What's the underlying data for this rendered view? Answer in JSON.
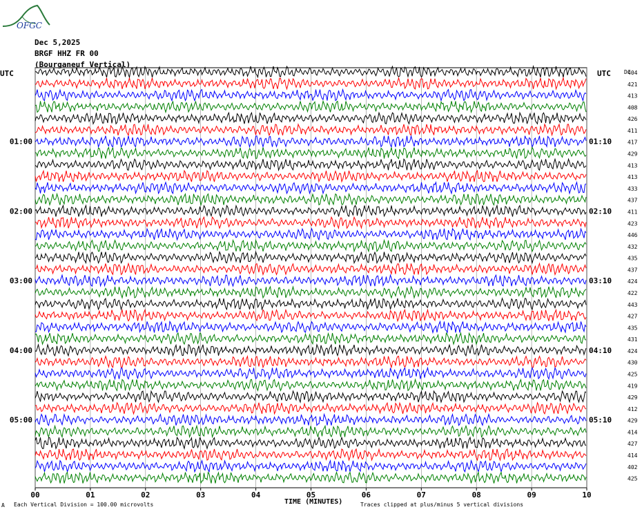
{
  "header": {
    "logo_text": "OFGC",
    "date": "Dec 5,2025",
    "station": "BRGF HHZ FR 00",
    "location": "(Bourganeuf Vertical)"
  },
  "footer": {
    "scale_note": "Each Vertical Division = 100.00 microvolts",
    "clip_note": "Traces clipped at plus/minus 5 vertical divisions",
    "corner_mark": "A"
  },
  "chart_data": {
    "type": "line",
    "title": "",
    "xlabel": "TIME (MINUTES)",
    "xlim": [
      0,
      10
    ],
    "x_ticks": [
      "00",
      "01",
      "02",
      "03",
      "04",
      "05",
      "06",
      "07",
      "08",
      "09",
      "10"
    ],
    "left_axis_title": "UTC",
    "right_axis_title": "UTC",
    "dc_label": "DC",
    "left_time_labels": [
      "01:00",
      "02:00",
      "03:00",
      "04:00",
      "05:00"
    ],
    "left_time_label_rows": [
      6,
      12,
      18,
      24,
      30
    ],
    "right_time_labels": [
      "01:10",
      "02:10",
      "03:10",
      "04:10",
      "05:10"
    ],
    "right_time_label_rows": [
      6,
      12,
      18,
      24,
      30
    ],
    "trace_minutes": 10,
    "trace_colors": [
      "#000000",
      "#ff0000",
      "#0000ff",
      "#008000"
    ],
    "dc_offsets": [
      404,
      421,
      413,
      408,
      426,
      411,
      417,
      429,
      413,
      413,
      433,
      437,
      411,
      423,
      446,
      432,
      435,
      437,
      424,
      422,
      443,
      427,
      435,
      431,
      424,
      430,
      425,
      419,
      429,
      412,
      429,
      414,
      427,
      414,
      402,
      425
    ]
  }
}
